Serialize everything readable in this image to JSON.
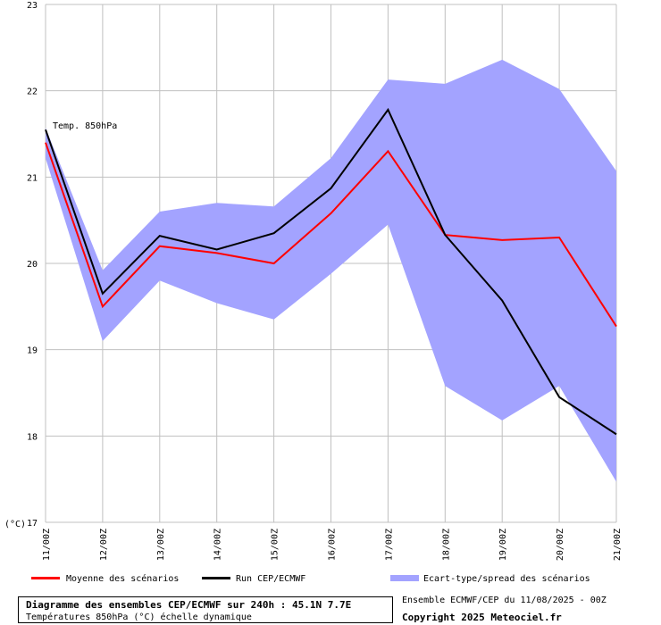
{
  "chart_data": {
    "type": "line",
    "y_unit": "(°C)",
    "ylim": [
      17,
      23
    ],
    "y_ticks": [
      "17",
      "18",
      "19",
      "20",
      "21",
      "22",
      "23"
    ],
    "categories": [
      "11/00Z",
      "12/00Z",
      "13/00Z",
      "14/00Z",
      "15/00Z",
      "16/00Z",
      "17/00Z",
      "18/00Z",
      "19/00Z",
      "20/00Z",
      "21/00Z"
    ],
    "annotation": "Temp. 850hPa",
    "grid": true,
    "series": [
      {
        "name": "Moyenne des scénarios",
        "color": "#ff0000",
        "values": [
          21.4,
          19.5,
          20.2,
          20.12,
          20.0,
          20.58,
          21.3,
          20.33,
          20.27,
          20.3,
          19.27
        ]
      },
      {
        "name": "Run CEP/ECMWF",
        "color": "#000000",
        "values": [
          21.55,
          19.65,
          20.32,
          20.16,
          20.35,
          20.87,
          21.78,
          20.33,
          19.57,
          18.45,
          18.02
        ]
      }
    ],
    "band": {
      "name": "Ecart-type/spread des scénarios",
      "color": "#a3a3ff",
      "upper": [
        21.57,
        19.92,
        20.6,
        20.7,
        20.66,
        21.22,
        22.13,
        22.08,
        22.36,
        22.02,
        21.07
      ],
      "lower": [
        21.22,
        19.1,
        19.8,
        19.54,
        19.35,
        19.88,
        20.45,
        18.58,
        18.18,
        18.58,
        17.47
      ]
    }
  },
  "footer": {
    "title": "Diagramme des ensembles CEP/ECMWF sur 240h : 45.1N 7.7E",
    "subtitle": "Températures 850hPa (°C) échelle dynamique",
    "ensemble_info": "Ensemble ECMWF/CEP du 11/08/2025 - 00Z",
    "copyright": "Copyright 2025 Meteociel.fr"
  }
}
